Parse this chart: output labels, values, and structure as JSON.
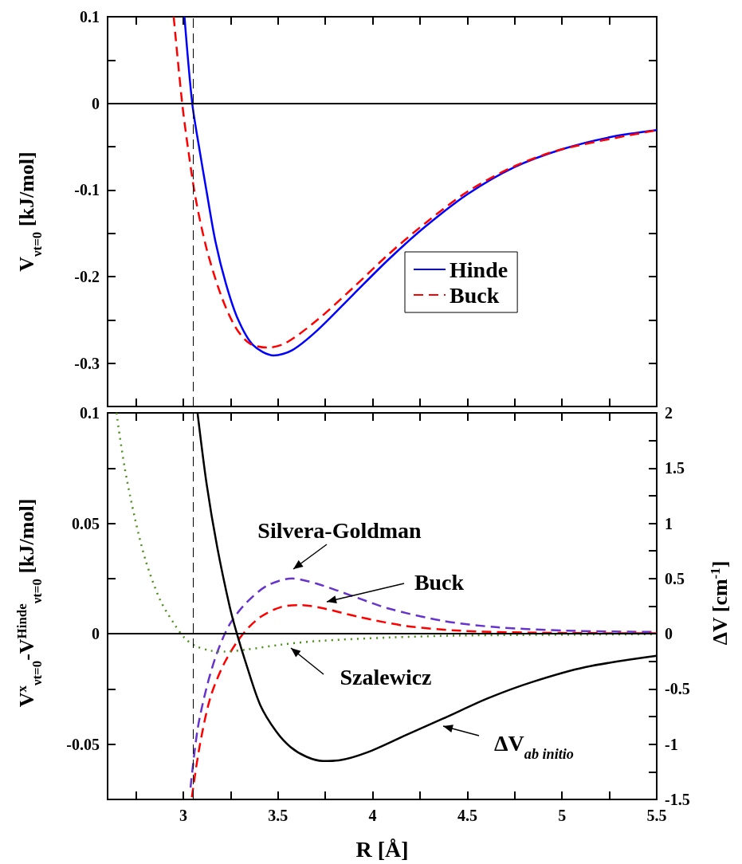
{
  "chart_data": [
    {
      "type": "line",
      "ylabel": "V$_{νt=0}$ [kJ/mol]",
      "xlim": [
        2.6,
        5.5
      ],
      "xticks": [
        {
          "value": 2.75,
          "label": null
        },
        3,
        {
          "value": 3.25,
          "label": null
        },
        3.5,
        {
          "value": 3.75,
          "label": null
        },
        4,
        {
          "value": 4.25,
          "label": null
        },
        4.5,
        {
          "value": 4.75,
          "label": null
        },
        5,
        {
          "value": 5.25,
          "label": null
        },
        5.5
      ],
      "ylim": [
        -0.35,
        0.1
      ],
      "yticks": [
        -0.3,
        {
          "value": -0.25,
          "label": null
        },
        -0.2,
        {
          "value": -0.15,
          "label": null
        },
        -0.1,
        {
          "value": -0.05,
          "label": null
        },
        0,
        {
          "value": 0.05,
          "label": null
        },
        0.1
      ],
      "tick_labels": "y",
      "legend": "right",
      "grid": false,
      "marker": "none",
      "ref_lines": [
        {
          "axis": "y",
          "value": 0,
          "color": "#000000",
          "line_style": "solid"
        },
        {
          "axis": "x",
          "value": 3.05,
          "color": "#000000",
          "line_style": "dashed"
        }
      ],
      "series": [
        {
          "name": "Hinde",
          "color": "#0000ff",
          "line_style": "solid",
          "x": [
            3.006,
            3.047,
            3.085,
            3.123,
            3.17,
            3.226,
            3.29,
            3.368,
            3.477,
            3.575,
            3.708,
            3.896,
            4.085,
            4.274,
            4.5,
            4.745,
            5.0,
            5.255,
            5.5
          ],
          "values": [
            0.1,
            0,
            -0.053,
            -0.102,
            -0.16,
            -0.209,
            -0.25,
            -0.279,
            -0.291,
            -0.285,
            -0.262,
            -0.221,
            -0.18,
            -0.143,
            -0.105,
            -0.074,
            -0.053,
            -0.039,
            -0.031
          ]
        },
        {
          "name": "Buck",
          "color": "#ff0000",
          "line_style": "dashed",
          "x": [
            2.949,
            2.994,
            3.028,
            3.066,
            3.123,
            3.198,
            3.274,
            3.349,
            3.443,
            3.538,
            3.708,
            3.896,
            4.085,
            4.274,
            4.5,
            4.745,
            5.0,
            5.5
          ],
          "values": [
            0.1,
            0,
            -0.057,
            -0.111,
            -0.168,
            -0.221,
            -0.258,
            -0.277,
            -0.282,
            -0.277,
            -0.25,
            -0.213,
            -0.174,
            -0.139,
            -0.102,
            -0.073,
            -0.053,
            -0.031
          ]
        }
      ]
    },
    {
      "type": "line",
      "xlabel": "R [Å]",
      "ylabel": "V$^{x}$$_{νt=0}$-V$^{Hinde}$$_{νt=0}$ [kJ/mol]",
      "y2label": "ΔV [cm$^{-1}$]",
      "xlim": [
        2.6,
        5.5
      ],
      "xticks": [
        {
          "value": 2.75,
          "label": null
        },
        3,
        {
          "value": 3.25,
          "label": null
        },
        3.5,
        {
          "value": 3.75,
          "label": null
        },
        4,
        {
          "value": 4.25,
          "label": null
        },
        4.5,
        {
          "value": 4.75,
          "label": null
        },
        5,
        {
          "value": 5.25,
          "label": null
        },
        5.5
      ],
      "ylim": [
        -0.075,
        0.1
      ],
      "yticks": [
        {
          "value": -0.075,
          "label": null
        },
        -0.05,
        {
          "value": -0.025,
          "label": null
        },
        0,
        {
          "value": 0.025,
          "label": null
        },
        0.05,
        {
          "value": 0.075,
          "label": null
        },
        0.1
      ],
      "y2lim": [
        -1.5,
        2
      ],
      "y2ticks": [
        -1.5,
        {
          "value": -1.25,
          "label": null
        },
        -1,
        {
          "value": -0.75,
          "label": null
        },
        -0.5,
        {
          "value": -0.25,
          "label": null
        },
        0,
        {
          "value": 0.25,
          "label": null
        },
        0.5,
        {
          "value": 0.75,
          "label": null
        },
        1,
        {
          "value": 1.25,
          "label": null
        },
        1.5,
        {
          "value": 1.75,
          "label": null
        },
        2
      ],
      "legend": false,
      "grid": false,
      "marker": "none",
      "annotations": [
        "Silvera-Goldman",
        "Buck",
        "Szalewicz",
        "ΔV$_{ab initio}$"
      ],
      "ref_lines": [
        {
          "axis": "y",
          "value": 0,
          "color": "#000000",
          "line_style": "solid"
        },
        {
          "axis": "x",
          "value": 3.05,
          "color": "#000000",
          "line_style": "dashed"
        }
      ],
      "series": [
        {
          "color": "#6633cc",
          "line_style": "dashed",
          "x": [
            3.038,
            3.075,
            3.123,
            3.179,
            3.245,
            3.33,
            3.443,
            3.575,
            3.708,
            3.896,
            4.085,
            4.368,
            4.651,
            5.028,
            5.5
          ],
          "values": [
            -0.0696,
            -0.0434,
            -0.0243,
            -0.0084,
            0.0043,
            0.0138,
            0.0218,
            0.025,
            0.0226,
            0.017,
            0.0114,
            0.0059,
            0.003,
            0.0014,
            0.0008
          ]
        },
        {
          "color": "#ff0000",
          "line_style": "dashed",
          "x": [
            3.045,
            3.085,
            3.142,
            3.217,
            3.311,
            3.406,
            3.519,
            3.623,
            3.745,
            3.934,
            4.179,
            4.462,
            4.84,
            5.5
          ],
          "values": [
            -0.074,
            -0.0514,
            -0.0291,
            -0.0132,
            -0.0005,
            0.0075,
            0.0122,
            0.013,
            0.0114,
            0.0075,
            0.0035,
            0.0014,
            0.0005,
            0.0002
          ]
        },
        {
          "color": "#4d8f1a",
          "line_style": "dotted",
          "x": [
            2.647,
            2.689,
            2.745,
            2.802,
            2.877,
            2.953,
            3.009,
            3.066,
            3.142,
            3.217,
            3.33,
            3.519,
            3.708,
            4.085,
            4.462,
            5.5
          ],
          "values": [
            0.1,
            0.0758,
            0.052,
            0.0329,
            0.0154,
            0.0043,
            -0.0021,
            -0.0056,
            -0.0076,
            -0.0081,
            -0.0072,
            -0.0049,
            -0.0033,
            -0.0017,
            -0.0008,
            -0.0002
          ]
        },
        {
          "color": "#000000",
          "line_style": "solid",
          "axis": "y2",
          "x": [
            3.075,
            3.123,
            3.179,
            3.245,
            3.283,
            3.33,
            3.406,
            3.49,
            3.566,
            3.651,
            3.736,
            3.821,
            3.972,
            4.179,
            4.368,
            4.613,
            4.84,
            5.123,
            5.5
          ],
          "values": [
            2.0,
            1.356,
            0.784,
            0.244,
            0,
            -0.263,
            -0.644,
            -0.883,
            -1.025,
            -1.114,
            -1.152,
            -1.146,
            -1.073,
            -0.914,
            -0.771,
            -0.581,
            -0.438,
            -0.302,
            -0.2
          ]
        }
      ]
    }
  ]
}
